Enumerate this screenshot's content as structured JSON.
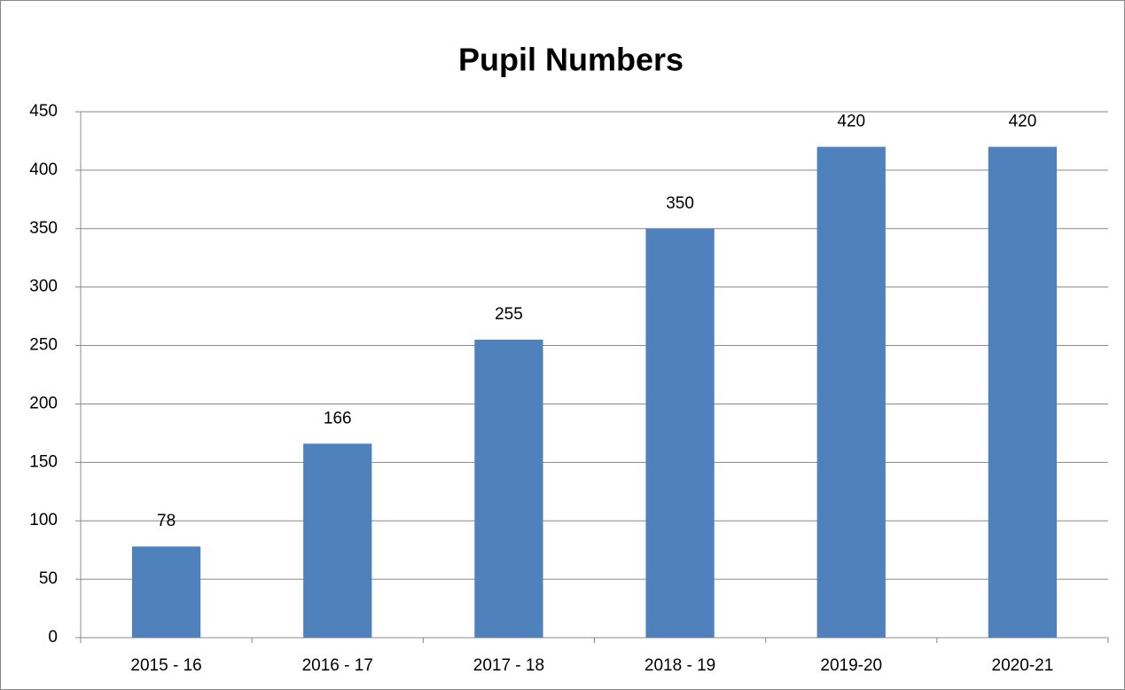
{
  "chart_data": {
    "type": "bar",
    "title": "Pupil Numbers",
    "categories": [
      "2015 - 16",
      "2016 - 17",
      "2017 - 18",
      "2018 - 19",
      "2019-20",
      "2020-21"
    ],
    "values": [
      78,
      166,
      255,
      350,
      420,
      420
    ],
    "color": "#4f81bd",
    "ylim": [
      0,
      450
    ],
    "yticks": [
      0,
      50,
      100,
      150,
      200,
      250,
      300,
      350,
      400,
      450
    ],
    "grid": true
  }
}
